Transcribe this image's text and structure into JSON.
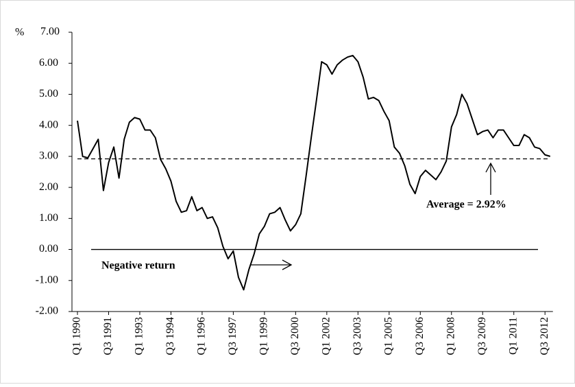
{
  "chart_data": {
    "type": "line",
    "y_label": "%",
    "categories": [
      "Q1 1990",
      null,
      null,
      null,
      null,
      null,
      "Q3 1991",
      null,
      null,
      null,
      null,
      null,
      "Q1 1993",
      null,
      null,
      null,
      null,
      null,
      "Q3 1994",
      null,
      null,
      null,
      null,
      null,
      "Q1 1996",
      null,
      null,
      null,
      null,
      null,
      "Q3 1997",
      null,
      null,
      null,
      null,
      null,
      "Q1 1999",
      null,
      null,
      null,
      null,
      null,
      "Q3 2000",
      null,
      null,
      null,
      null,
      null,
      "Q1 2002",
      null,
      null,
      null,
      null,
      null,
      "Q3 2003",
      null,
      null,
      null,
      null,
      null,
      "Q1 2005",
      null,
      null,
      null,
      null,
      null,
      "Q3 2006",
      null,
      null,
      null,
      null,
      null,
      "Q1 2008",
      null,
      null,
      null,
      null,
      null,
      "Q3 2009",
      null,
      null,
      null,
      null,
      null,
      "Q1 2011",
      null,
      null,
      null,
      null,
      null,
      "Q3 2012",
      null
    ],
    "series": [
      {
        "color": "#000000",
        "values": [
          4.15,
          3.0,
          2.95,
          3.25,
          3.55,
          1.9,
          2.8,
          3.3,
          2.3,
          3.55,
          4.1,
          4.25,
          4.2,
          3.85,
          3.85,
          3.6,
          2.9,
          2.6,
          2.2,
          1.55,
          1.2,
          1.25,
          1.7,
          1.25,
          1.35,
          1.0,
          1.05,
          0.7,
          0.1,
          -0.3,
          -0.05,
          -0.9,
          -1.3,
          -0.65,
          -0.15,
          0.5,
          0.75,
          1.15,
          1.2,
          1.35,
          0.95,
          0.6,
          0.8,
          1.15,
          2.35,
          3.6,
          4.8,
          6.05,
          5.95,
          5.65,
          5.95,
          6.1,
          6.2,
          6.25,
          6.05,
          5.55,
          4.85,
          4.9,
          4.8,
          4.45,
          4.15,
          3.3,
          3.1,
          2.7,
          2.1,
          1.8,
          2.35,
          2.55,
          2.4,
          2.25,
          2.5,
          2.85,
          3.95,
          4.35,
          5.0,
          4.7,
          4.2,
          3.7,
          3.8,
          3.85,
          3.6,
          3.85,
          3.85,
          3.6,
          3.35,
          3.35,
          3.7,
          3.6,
          3.3,
          3.25,
          3.05,
          3.0
        ]
      }
    ],
    "average": 2.92,
    "annotations": [
      "Average = 2.92%",
      "Negative return"
    ],
    "ylim": [
      -2,
      7
    ],
    "yticks": [
      {
        "value": -2,
        "label": "-2.00"
      },
      {
        "value": -1,
        "label": "-1.00"
      },
      {
        "value": 0,
        "label": "0.00"
      },
      {
        "value": 1,
        "label": "1.00"
      },
      {
        "value": 2,
        "label": "2.00"
      },
      {
        "value": 3,
        "label": "3.00"
      },
      {
        "value": 4,
        "label": "4.00"
      },
      {
        "value": 5,
        "label": "5.00"
      },
      {
        "value": 6,
        "label": "6.00"
      },
      {
        "value": 7,
        "label": "7.00"
      }
    ]
  }
}
